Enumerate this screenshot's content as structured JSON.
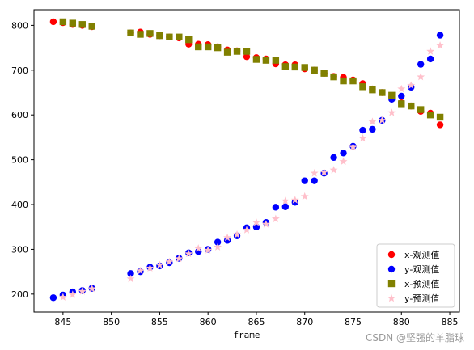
{
  "chart_data": {
    "type": "scatter",
    "xlabel": "frame",
    "ylabel": "",
    "xlim": [
      842,
      886
    ],
    "ylim": [
      160,
      835
    ],
    "x_ticks": [
      845,
      850,
      855,
      860,
      865,
      870,
      875,
      880,
      885
    ],
    "y_ticks": [
      200,
      300,
      400,
      500,
      600,
      700,
      800
    ],
    "grid": false,
    "legend_position": "lower-right",
    "series": [
      {
        "name": "x-观测值",
        "marker": "circle",
        "color": "#ff0000",
        "x": [
          844,
          845,
          846,
          847,
          848,
          852,
          853,
          854,
          855,
          856,
          857,
          858,
          859,
          860,
          861,
          862,
          863,
          864,
          865,
          866,
          867,
          868,
          869,
          870,
          871,
          872,
          873,
          874,
          875,
          876,
          877,
          878,
          879,
          880,
          881,
          882,
          883,
          884
        ],
        "y": [
          808,
          806,
          802,
          800,
          797,
          783,
          785,
          780,
          777,
          774,
          772,
          758,
          758,
          757,
          752,
          745,
          743,
          730,
          728,
          725,
          714,
          712,
          712,
          703,
          700,
          693,
          686,
          684,
          678,
          670,
          658,
          650,
          640,
          627,
          620,
          608,
          604,
          578
        ]
      },
      {
        "name": "y-观测值",
        "marker": "circle",
        "color": "#0000ff",
        "x": [
          844,
          845,
          846,
          847,
          848,
          852,
          853,
          854,
          855,
          856,
          857,
          858,
          859,
          860,
          861,
          862,
          863,
          864,
          865,
          866,
          867,
          868,
          869,
          870,
          871,
          872,
          873,
          874,
          875,
          876,
          877,
          878,
          879,
          880,
          881,
          882,
          883,
          884
        ],
        "y": [
          192,
          198,
          205,
          208,
          213,
          246,
          250,
          260,
          263,
          270,
          280,
          292,
          295,
          300,
          316,
          320,
          330,
          348,
          350,
          360,
          394,
          395,
          405,
          453,
          453,
          470,
          505,
          515,
          530,
          566,
          568,
          588,
          635,
          642,
          662,
          713,
          725,
          778
        ]
      },
      {
        "name": "x-预测值",
        "marker": "square",
        "color": "#808000",
        "x": [
          845,
          846,
          847,
          848,
          852,
          853,
          854,
          855,
          856,
          857,
          858,
          859,
          860,
          861,
          862,
          863,
          864,
          865,
          866,
          867,
          868,
          869,
          870,
          871,
          872,
          873,
          874,
          875,
          876,
          877,
          878,
          879,
          880,
          881,
          882,
          883,
          884
        ],
        "y": [
          808,
          805,
          802,
          798,
          783,
          780,
          782,
          777,
          774,
          774,
          768,
          752,
          752,
          750,
          740,
          742,
          742,
          724,
          722,
          722,
          708,
          707,
          706,
          700,
          693,
          685,
          676,
          676,
          663,
          656,
          650,
          644,
          625,
          620,
          612,
          600,
          595
        ]
      },
      {
        "name": "y-预测值",
        "marker": "star",
        "color": "#ffc0cb",
        "x": [
          845,
          846,
          847,
          848,
          852,
          853,
          854,
          855,
          856,
          857,
          858,
          859,
          860,
          861,
          862,
          863,
          864,
          865,
          866,
          867,
          868,
          869,
          870,
          871,
          872,
          873,
          874,
          875,
          876,
          877,
          878,
          879,
          880,
          881,
          882,
          883,
          884
        ],
        "y": [
          193,
          199,
          206,
          212,
          234,
          252,
          258,
          265,
          272,
          279,
          290,
          302,
          298,
          305,
          326,
          333,
          343,
          360,
          356,
          368,
          408,
          410,
          418,
          470,
          472,
          477,
          496,
          528,
          548,
          585,
          588,
          605,
          658,
          666,
          685,
          742,
          755
        ]
      }
    ]
  },
  "legend": {
    "items": [
      {
        "label": "x-观测值",
        "color": "#ff0000",
        "marker": "circle"
      },
      {
        "label": "y-观测值",
        "color": "#0000ff",
        "marker": "circle"
      },
      {
        "label": "x-预测值",
        "color": "#808000",
        "marker": "square"
      },
      {
        "label": "y-预测值",
        "color": "#ffc0cb",
        "marker": "star"
      }
    ]
  },
  "watermark": "CSDN @坚强的羊脂球"
}
